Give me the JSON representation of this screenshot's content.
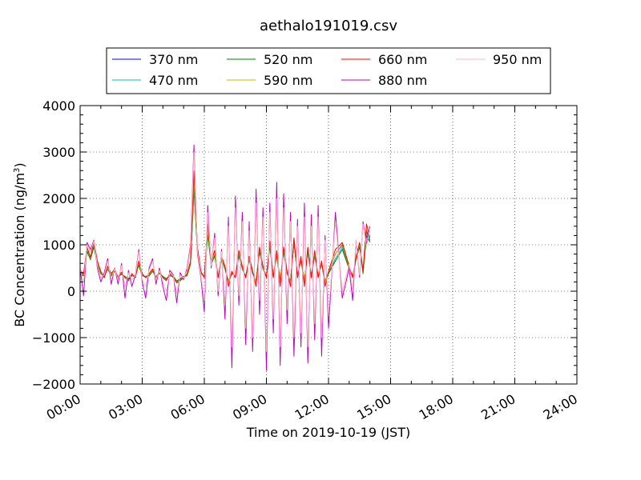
{
  "chart_data": {
    "type": "line",
    "title": "aethalo191019.csv",
    "xlabel": "Time on 2019-10-19 (JST)",
    "ylabel_main": "BC Concentration (ng/m",
    "ylabel_sup": "3",
    "ylabel_close": ")",
    "xlim": [
      "00:00",
      "24:00"
    ],
    "ylim": [
      -2000,
      4000
    ],
    "grid": true,
    "legend_position": "top-center",
    "x_ticks": [
      "00:00",
      "03:00",
      "06:00",
      "09:00",
      "12:00",
      "15:00",
      "18:00",
      "21:00",
      "24:00"
    ],
    "y_ticks": [
      "−2000",
      "−1000",
      "0",
      "1000",
      "2000",
      "3000",
      "4000"
    ],
    "x": [
      "00:00",
      "00:10",
      "00:20",
      "00:30",
      "00:40",
      "00:50",
      "01:00",
      "01:10",
      "01:20",
      "01:30",
      "01:40",
      "01:50",
      "02:00",
      "02:10",
      "02:20",
      "02:30",
      "02:40",
      "02:50",
      "03:00",
      "03:10",
      "03:20",
      "03:30",
      "03:40",
      "03:50",
      "04:00",
      "04:10",
      "04:20",
      "04:30",
      "04:40",
      "04:50",
      "05:00",
      "05:10",
      "05:20",
      "05:30",
      "05:40",
      "05:50",
      "06:00",
      "06:10",
      "06:20",
      "06:30",
      "06:40",
      "06:50",
      "07:00",
      "07:10",
      "07:20",
      "07:30",
      "07:40",
      "07:50",
      "08:00",
      "08:10",
      "08:20",
      "08:30",
      "08:40",
      "08:50",
      "09:00",
      "09:10",
      "09:20",
      "09:30",
      "09:40",
      "09:50",
      "10:00",
      "10:10",
      "10:20",
      "10:30",
      "10:40",
      "10:50",
      "11:00",
      "11:10",
      "11:20",
      "11:30",
      "11:40",
      "11:50",
      "12:00",
      "12:20",
      "12:40",
      "13:00",
      "13:10",
      "13:20",
      "13:30",
      "13:40",
      "13:50",
      "14:00"
    ],
    "series": [
      {
        "name": "370 nm",
        "color": "#0000ff",
        "values": [
          400,
          350,
          900,
          700,
          1000,
          600,
          400,
          300,
          500,
          350,
          450,
          300,
          380,
          300,
          250,
          350,
          300,
          600,
          350,
          300,
          350,
          450,
          300,
          400,
          300,
          250,
          350,
          300,
          200,
          250,
          300,
          350,
          600,
          2300,
          900,
          400,
          300,
          1300,
          600,
          800,
          300,
          700,
          500,
          200,
          400,
          300,
          800,
          500,
          300,
          700,
          400,
          200,
          900,
          500,
          300,
          1000,
          300,
          800,
          200,
          900,
          400,
          200,
          1100,
          300,
          700,
          200,
          900,
          300,
          800,
          300,
          600,
          200,
          400,
          800,
          1000,
          500,
          300,
          700,
          1000,
          400,
          1300,
          1100
        ]
      },
      {
        "name": "470 nm",
        "color": "#00bfbf",
        "values": [
          380,
          340,
          880,
          690,
          980,
          590,
          390,
          310,
          490,
          340,
          440,
          310,
          370,
          310,
          260,
          340,
          310,
          580,
          340,
          310,
          340,
          440,
          310,
          390,
          310,
          260,
          340,
          310,
          210,
          260,
          310,
          340,
          590,
          2250,
          880,
          390,
          310,
          1250,
          590,
          780,
          310,
          690,
          490,
          210,
          390,
          310,
          780,
          490,
          310,
          690,
          390,
          210,
          880,
          490,
          310,
          980,
          310,
          780,
          210,
          880,
          390,
          210,
          1080,
          310,
          690,
          210,
          880,
          310,
          780,
          310,
          590,
          210,
          390,
          700,
          950,
          490,
          310,
          690,
          980,
          390,
          1250,
          1080
        ]
      },
      {
        "name": "520 nm",
        "color": "#008000",
        "values": [
          360,
          330,
          860,
          680,
          960,
          580,
          380,
          320,
          480,
          330,
          430,
          320,
          360,
          320,
          270,
          330,
          320,
          560,
          330,
          320,
          330,
          430,
          320,
          380,
          320,
          270,
          330,
          320,
          220,
          270,
          320,
          330,
          580,
          2200,
          860,
          380,
          320,
          1200,
          580,
          760,
          320,
          680,
          480,
          220,
          380,
          320,
          760,
          480,
          320,
          680,
          380,
          220,
          860,
          480,
          320,
          960,
          320,
          760,
          220,
          860,
          380,
          220,
          1060,
          320,
          680,
          220,
          860,
          320,
          760,
          320,
          580,
          220,
          380,
          650,
          900,
          480,
          320,
          680,
          960,
          380,
          1200,
          1060
        ]
      },
      {
        "name": "590 nm",
        "color": "#bfbf00",
        "values": [
          420,
          360,
          920,
          710,
          1050,
          620,
          410,
          300,
          510,
          360,
          460,
          300,
          390,
          300,
          240,
          360,
          300,
          620,
          360,
          300,
          360,
          460,
          300,
          410,
          300,
          240,
          360,
          300,
          190,
          240,
          300,
          360,
          620,
          2400,
          920,
          410,
          300,
          1350,
          620,
          820,
          300,
          720,
          510,
          190,
          410,
          300,
          820,
          510,
          300,
          720,
          410,
          190,
          920,
          510,
          300,
          1050,
          300,
          820,
          190,
          920,
          410,
          190,
          1120,
          300,
          720,
          190,
          920,
          300,
          820,
          300,
          620,
          190,
          410,
          800,
          1020,
          510,
          300,
          720,
          1020,
          410,
          1350,
          1120
        ]
      },
      {
        "name": "660 nm",
        "color": "#ff0000",
        "values": [
          450,
          370,
          950,
          730,
          1080,
          650,
          430,
          290,
          540,
          380,
          480,
          290,
          410,
          290,
          230,
          380,
          290,
          650,
          380,
          290,
          380,
          480,
          290,
          430,
          290,
          230,
          380,
          290,
          180,
          230,
          290,
          380,
          650,
          2600,
          950,
          430,
          290,
          1450,
          650,
          880,
          290,
          750,
          540,
          100,
          430,
          290,
          880,
          540,
          290,
          750,
          430,
          100,
          950,
          540,
          290,
          1080,
          290,
          880,
          100,
          950,
          430,
          100,
          1150,
          290,
          750,
          100,
          950,
          290,
          880,
          290,
          650,
          100,
          430,
          900,
          1050,
          540,
          290,
          750,
          1050,
          430,
          1450,
          1150
        ]
      },
      {
        "name": "880 nm",
        "color": "#bf00bf",
        "values": [
          500,
          -100,
          1050,
          900,
          1100,
          500,
          200,
          400,
          700,
          150,
          500,
          150,
          600,
          -150,
          450,
          100,
          350,
          900,
          200,
          -150,
          500,
          700,
          150,
          500,
          100,
          -200,
          450,
          350,
          -250,
          400,
          250,
          500,
          1000,
          3150,
          800,
          300,
          -450,
          1850,
          500,
          1250,
          -100,
          900,
          -600,
          1600,
          -1650,
          2050,
          -300,
          1700,
          -1150,
          1500,
          -1300,
          2200,
          -500,
          1800,
          -1700,
          1900,
          -900,
          2350,
          -1600,
          2100,
          -700,
          1700,
          -1400,
          1550,
          -1200,
          1900,
          -1550,
          1650,
          -1050,
          1850,
          -1400,
          1200,
          -800,
          1700,
          -150,
          500,
          -200,
          1100,
          300,
          1500,
          1000,
          1400
        ]
      },
      {
        "name": "950 nm",
        "color": "#ffb6c1",
        "values": [
          480,
          200,
          1000,
          850,
          1080,
          550,
          300,
          350,
          650,
          250,
          480,
          250,
          550,
          100,
          400,
          250,
          330,
          850,
          250,
          100,
          450,
          650,
          250,
          450,
          200,
          0,
          400,
          330,
          -50,
          350,
          280,
          450,
          950,
          3000,
          850,
          350,
          -200,
          1700,
          550,
          1150,
          0,
          850,
          -300,
          1400,
          -1200,
          1800,
          -100,
          1500,
          -800,
          1300,
          -1000,
          1900,
          -200,
          1600,
          -1300,
          1700,
          -600,
          2000,
          -1200,
          1800,
          -400,
          1500,
          -1000,
          1400,
          -900,
          1600,
          -1200,
          1400,
          -700,
          1600,
          -1000,
          1100,
          -500,
          1500,
          0,
          600,
          0,
          1100,
          350,
          1450,
          950,
          1350
        ]
      }
    ]
  }
}
